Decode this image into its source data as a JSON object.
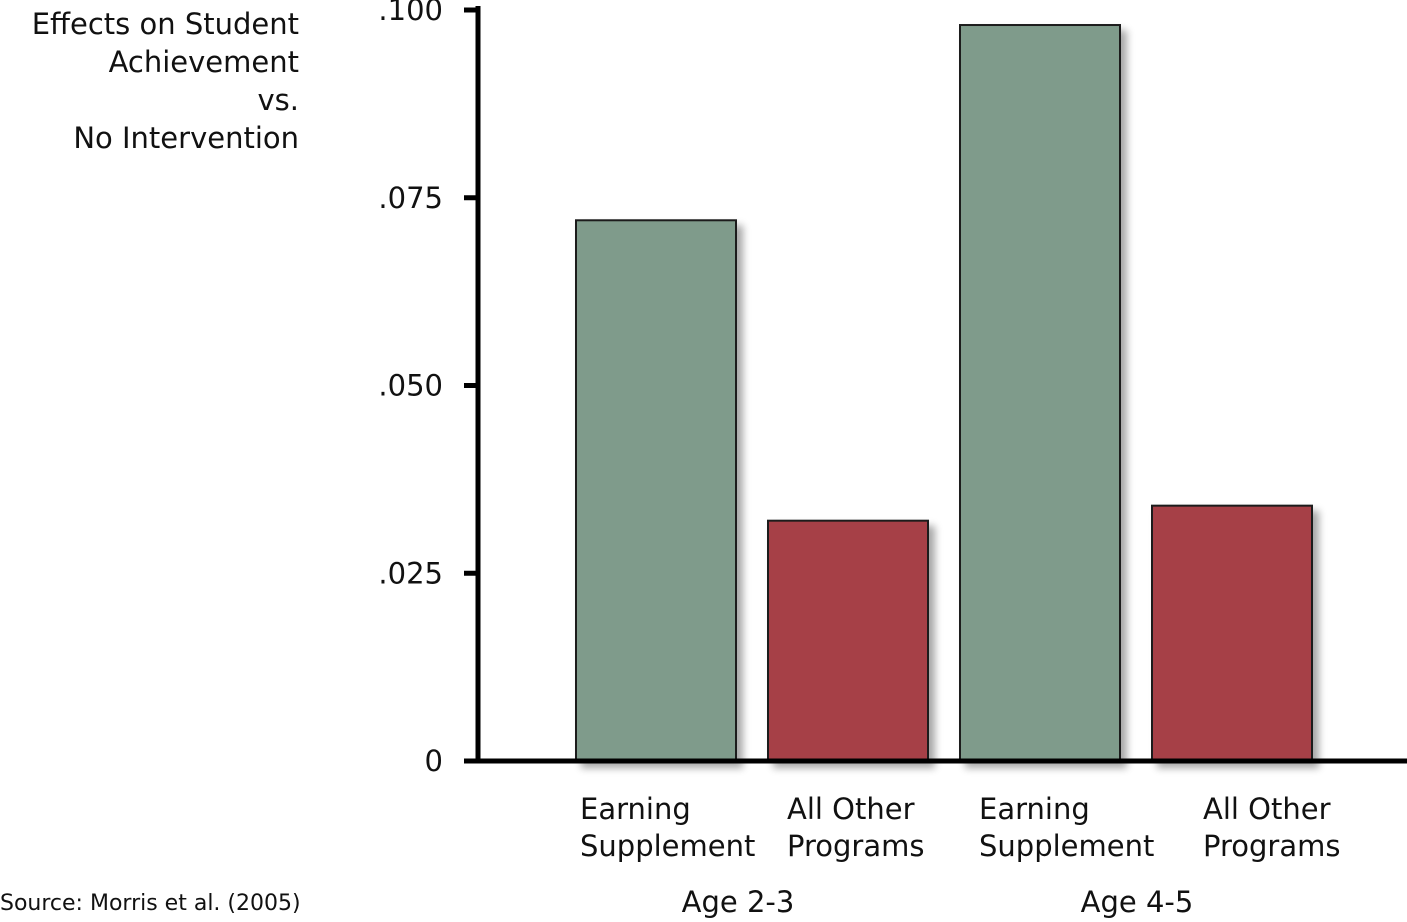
{
  "chart_data": {
    "type": "bar",
    "title": "",
    "ylabel_lines": [
      "Effects on Student",
      "Achievement",
      "vs.",
      "No Intervention"
    ],
    "ylim": [
      0,
      0.1
    ],
    "yticks": [
      {
        "value": 0,
        "label": "0"
      },
      {
        "value": 0.025,
        "label": ".025"
      },
      {
        "value": 0.05,
        "label": ".050"
      },
      {
        "value": 0.075,
        "label": ".075"
      },
      {
        "value": 0.1,
        "label": ".100"
      }
    ],
    "groups": [
      {
        "label": "Age 2-3"
      },
      {
        "label": "Age 4-5"
      }
    ],
    "bars": [
      {
        "group": 0,
        "label_lines": [
          "Earning",
          "Supplement"
        ],
        "value": 0.072,
        "color": "#7f9b8b"
      },
      {
        "group": 0,
        "label_lines": [
          "All Other",
          "Programs"
        ],
        "value": 0.032,
        "color": "#a64147"
      },
      {
        "group": 1,
        "label_lines": [
          "Earning",
          "Supplement"
        ],
        "value": 0.098,
        "color": "#7f9b8b"
      },
      {
        "group": 1,
        "label_lines": [
          "All Other",
          "Programs"
        ],
        "value": 0.034,
        "color": "#a64147"
      }
    ],
    "grid": false,
    "source": "Source: Morris et al. (2005)"
  }
}
